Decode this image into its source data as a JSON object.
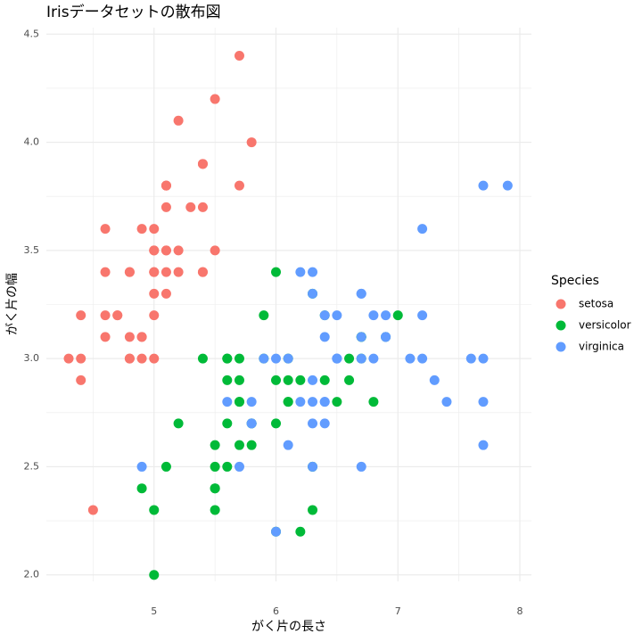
{
  "chart_data": {
    "type": "scatter",
    "title": "Irisデータセットの散布図",
    "x_label": "がく片の長さ",
    "y_label": "がく片の幅",
    "legend_title": "Species",
    "legend_position": "right",
    "grid": true,
    "xlim": [
      4.117,
      8.095
    ],
    "ylim": [
      1.97,
      4.53
    ],
    "xticks": [
      5,
      6,
      7,
      8
    ],
    "xminor_ticks": [
      4.5,
      5.5,
      6.5,
      7.5
    ],
    "yticks": [
      {
        "value": 2,
        "label": "2.0"
      },
      2.5,
      {
        "value": 3,
        "label": "3.0"
      },
      3.5,
      {
        "value": 4,
        "label": "4.0"
      },
      4.5
    ],
    "yminor_ticks": [
      2.25,
      2.75,
      3.25,
      3.75,
      4.25
    ],
    "series": [
      {
        "name": "setosa",
        "color": "#F8766D",
        "x": [
          5.1,
          4.9,
          4.7,
          4.6,
          5.0,
          5.4,
          4.6,
          5.0,
          4.4,
          4.9,
          5.4,
          4.8,
          4.8,
          4.3,
          5.8,
          5.7,
          5.4,
          5.1,
          5.7,
          5.1,
          5.4,
          5.1,
          4.6,
          5.1,
          4.8,
          5.0,
          5.0,
          5.2,
          5.2,
          4.7,
          4.8,
          5.4,
          5.2,
          5.5,
          4.9,
          5.0,
          5.5,
          4.9,
          4.4,
          5.1,
          5.0,
          4.5,
          4.4,
          5.0,
          5.1,
          4.8,
          5.1,
          4.6,
          5.3,
          5.0
        ],
        "values": [
          3.5,
          3.0,
          3.2,
          3.1,
          3.6,
          3.9,
          3.4,
          3.4,
          2.9,
          3.1,
          3.7,
          3.4,
          3.0,
          3.0,
          4.0,
          4.4,
          3.9,
          3.5,
          3.8,
          3.8,
          3.4,
          3.7,
          3.6,
          3.3,
          3.4,
          3.0,
          3.4,
          3.5,
          3.4,
          3.2,
          3.1,
          3.4,
          4.1,
          4.2,
          3.1,
          3.2,
          3.5,
          3.6,
          3.0,
          3.4,
          3.5,
          2.3,
          3.2,
          3.5,
          3.8,
          3.0,
          3.8,
          3.2,
          3.7,
          3.3
        ]
      },
      {
        "name": "versicolor",
        "color": "#00BA38",
        "x": [
          7.0,
          6.4,
          6.9,
          5.5,
          6.5,
          5.7,
          6.3,
          4.9,
          6.6,
          5.2,
          5.0,
          5.9,
          6.0,
          6.1,
          5.6,
          6.7,
          5.6,
          5.8,
          6.2,
          5.6,
          5.9,
          6.1,
          6.3,
          6.1,
          6.4,
          6.6,
          6.8,
          6.7,
          6.0,
          5.7,
          5.5,
          5.5,
          5.8,
          6.0,
          5.4,
          6.0,
          6.7,
          6.3,
          5.6,
          5.5,
          5.5,
          6.1,
          5.8,
          5.0,
          5.6,
          5.7,
          5.7,
          6.2,
          5.1,
          5.7
        ],
        "values": [
          3.2,
          3.2,
          3.1,
          2.3,
          2.8,
          2.8,
          3.3,
          2.4,
          2.9,
          2.7,
          2.0,
          3.0,
          2.2,
          2.9,
          2.9,
          3.1,
          3.0,
          2.7,
          2.2,
          2.5,
          3.2,
          2.8,
          2.5,
          2.8,
          2.9,
          3.0,
          2.8,
          3.0,
          2.9,
          2.6,
          2.4,
          2.4,
          2.7,
          2.7,
          3.0,
          3.4,
          3.1,
          2.3,
          3.0,
          2.5,
          2.6,
          3.0,
          2.6,
          2.3,
          2.7,
          3.0,
          2.9,
          2.9,
          2.5,
          2.8
        ]
      },
      {
        "name": "virginica",
        "color": "#619CFF",
        "x": [
          6.3,
          5.8,
          7.1,
          6.3,
          6.5,
          7.6,
          4.9,
          7.3,
          6.7,
          7.2,
          6.5,
          6.4,
          6.8,
          5.7,
          5.8,
          6.4,
          6.5,
          7.7,
          7.7,
          6.0,
          6.9,
          5.6,
          7.7,
          6.3,
          6.7,
          7.2,
          6.2,
          6.1,
          6.4,
          7.2,
          7.4,
          7.9,
          6.4,
          6.3,
          6.1,
          7.7,
          6.3,
          6.4,
          6.0,
          6.9,
          6.7,
          6.9,
          5.8,
          6.8,
          6.7,
          6.7,
          6.3,
          6.5,
          6.2,
          5.9
        ],
        "values": [
          3.3,
          2.7,
          3.0,
          2.9,
          3.0,
          3.0,
          2.5,
          2.9,
          2.5,
          3.6,
          3.2,
          2.7,
          3.0,
          2.5,
          2.8,
          3.2,
          3.0,
          3.8,
          2.6,
          2.2,
          3.2,
          2.8,
          2.8,
          2.7,
          3.3,
          3.2,
          2.8,
          3.0,
          2.8,
          3.0,
          2.8,
          3.8,
          2.8,
          2.8,
          2.6,
          3.0,
          3.4,
          3.1,
          3.0,
          3.1,
          3.1,
          3.1,
          2.7,
          3.2,
          3.3,
          3.0,
          2.5,
          3.0,
          3.4,
          3.0
        ]
      }
    ]
  }
}
